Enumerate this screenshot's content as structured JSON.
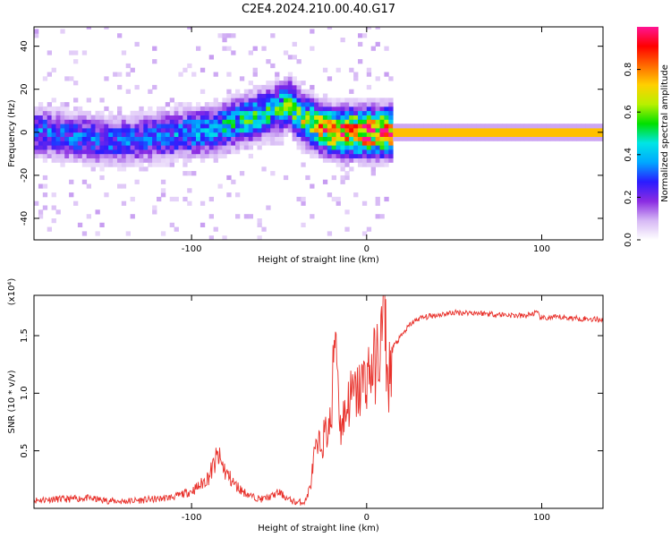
{
  "title": "C2E4.2024.210.00.40.G17",
  "colors": {
    "snr_line": "#e8302a",
    "colormap": [
      "#ffffff",
      "#d6b8f5",
      "#8a2be2",
      "#2a1cff",
      "#00a8ff",
      "#00e5e5",
      "#00e000",
      "#b8f000",
      "#ffd000",
      "#ff6a00",
      "#ff0000",
      "#ff1493"
    ]
  },
  "chart_data": [
    {
      "type": "heatmap",
      "xlabel": "Height of straight line (km)",
      "ylabel": "Frequency (Hz)",
      "xlim": [
        -190,
        135
      ],
      "ylim": [
        -50,
        49
      ],
      "xticks": [
        -100,
        0,
        100
      ],
      "yticks": [
        -40,
        -20,
        0,
        20,
        40
      ],
      "colorbar": {
        "label": "Normalized spectral amplitude",
        "range": [
          0.0,
          1.0
        ],
        "ticks": [
          "0.0",
          "0.2",
          "0.4",
          "0.6",
          "0.8"
        ],
        "tick_values": [
          0.0,
          0.2,
          0.4,
          0.6,
          0.8
        ]
      },
      "ridge": {
        "x": [
          -190,
          -170,
          -150,
          -130,
          -110,
          -90,
          -70,
          -55,
          -45,
          -38,
          -30,
          -20,
          -10,
          0,
          10,
          20,
          135
        ],
        "frequency": [
          0,
          -2,
          -4,
          -3,
          -1,
          1,
          6,
          10,
          13,
          6,
          3,
          0,
          0,
          0,
          0,
          0,
          0
        ],
        "amplitude": [
          0.35,
          0.35,
          0.33,
          0.32,
          0.38,
          0.42,
          0.5,
          0.52,
          0.55,
          0.65,
          0.75,
          0.85,
          0.9,
          0.95,
          0.95,
          0.95,
          0.95
        ]
      }
    },
    {
      "type": "line",
      "xlabel": "Height of straight line (km)",
      "ylabel": "SNR (10 * v/v)",
      "multiplier": "(x10⁴)",
      "xlim": [
        -190,
        135
      ],
      "ylim": [
        0,
        1.85
      ],
      "xticks": [
        -100,
        0,
        100
      ],
      "yticks": [
        0.5,
        1.0,
        1.5
      ],
      "ytick_labels": [
        "0.5",
        "1.0",
        "1.5"
      ],
      "series": [
        {
          "x": [
            -190,
            -180,
            -170,
            -160,
            -150,
            -140,
            -130,
            -120,
            -110,
            -100,
            -95,
            -90,
            -85,
            -80,
            -75,
            -70,
            -65,
            -60,
            -55,
            -50,
            -45,
            -40,
            -35,
            -32,
            -30,
            -25,
            -20,
            -18,
            -15,
            -10,
            -5,
            0,
            5,
            8,
            10,
            12,
            15,
            20,
            25,
            30,
            40,
            50,
            60,
            70,
            80,
            90,
            97,
            100,
            110,
            120,
            135
          ],
          "y": [
            0.07,
            0.08,
            0.08,
            0.09,
            0.07,
            0.06,
            0.07,
            0.08,
            0.1,
            0.15,
            0.2,
            0.28,
            0.45,
            0.3,
            0.2,
            0.14,
            0.1,
            0.08,
            0.1,
            0.14,
            0.08,
            0.05,
            0.06,
            0.2,
            0.45,
            0.6,
            0.75,
            1.7,
            0.7,
            0.95,
            1.0,
            1.15,
            1.25,
            1.4,
            1.85,
            1.05,
            1.4,
            1.5,
            1.6,
            1.65,
            1.68,
            1.7,
            1.7,
            1.69,
            1.68,
            1.67,
            1.7,
            1.65,
            1.66,
            1.65,
            1.64
          ]
        }
      ]
    }
  ]
}
